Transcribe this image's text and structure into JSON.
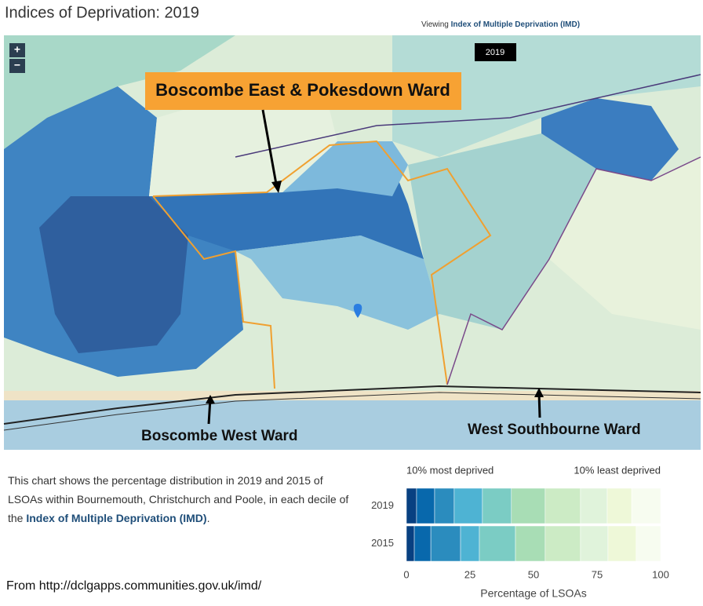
{
  "header": {
    "title": "Indices of Deprivation: 2019",
    "viewing": "Viewing",
    "indicator": "Index of Multiple Deprivation (IMD)"
  },
  "map": {
    "year": "2019",
    "zoom_in": "+",
    "zoom_out": "−",
    "labels": [
      "Boscombe East & Pokesdown Ward",
      "Boscombe West Ward",
      "West Southbourne Ward"
    ]
  },
  "description": {
    "text": "This chart shows the percentage distribution in 2019 and 2015 of LSOAs within Bournemouth, Christchurch and Poole, in each decile of the",
    "link": "Index of Multiple Deprivation (IMD)",
    "end": "."
  },
  "source": "From http://dclgapps.communities.gov.uk/imd/",
  "chart_data": {
    "type": "stacked_barh",
    "categories": [
      "2019",
      "2015"
    ],
    "annotations": [
      "10% most deprived",
      "10% least deprived"
    ],
    "xlabel": "Percentage of LSOAs",
    "xlim": [
      0,
      100
    ],
    "xticks": [
      0,
      25,
      50,
      75,
      100
    ],
    "series": [
      {
        "color": "#084081",
        "values": [
          4.0,
          3.1
        ]
      },
      {
        "color": "#0868ac",
        "values": [
          7.1,
          6.5
        ]
      },
      {
        "color": "#2b8cbe",
        "values": [
          7.7,
          11.7
        ]
      },
      {
        "color": "#4eb3d3",
        "values": [
          11.1,
          7.4
        ]
      },
      {
        "color": "#7bccc4",
        "values": [
          11.4,
          14.2
        ]
      },
      {
        "color": "#a8ddb5",
        "values": [
          13.3,
          11.7
        ]
      },
      {
        "color": "#ccebc5",
        "values": [
          13.9,
          13.9
        ]
      },
      {
        "color": "#e0f3db",
        "values": [
          10.5,
          10.8
        ]
      },
      {
        "color": "#eef8d8",
        "values": [
          9.6,
          11.1
        ]
      },
      {
        "color": "#f7fcf0",
        "values": [
          11.4,
          9.6
        ]
      }
    ]
  }
}
